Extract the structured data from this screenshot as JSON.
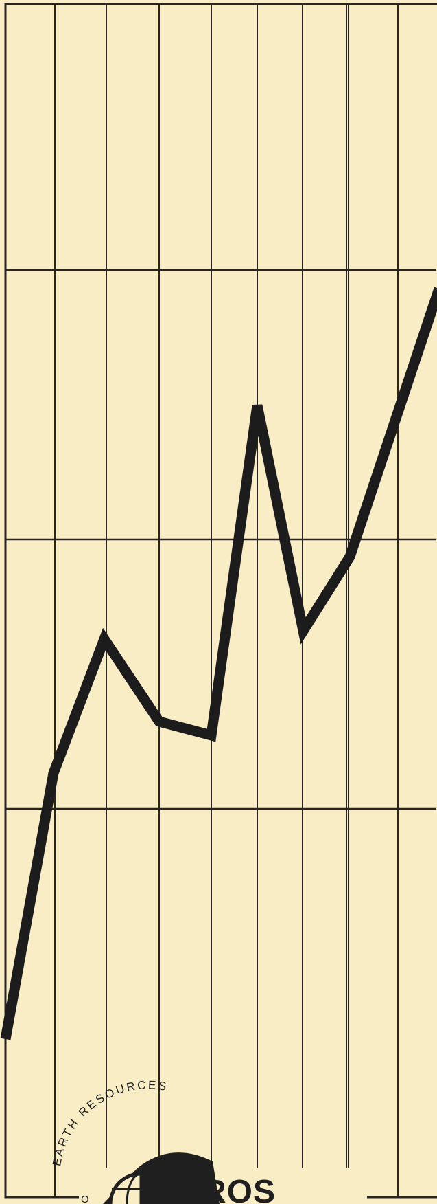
{
  "chart_data": {
    "type": "line",
    "title": "",
    "xlabel": "",
    "ylabel": "",
    "x": [
      1,
      2,
      3,
      4,
      5,
      6,
      7,
      8,
      9
    ],
    "y": [
      0.15,
      1.65,
      2.55,
      1.95,
      1.85,
      4.5,
      2.4,
      2.85,
      5.3
    ],
    "xlim": [
      1,
      9
    ],
    "ylim": [
      0,
      6
    ],
    "grid": true,
    "legend": "none",
    "colors": {
      "paper": "#f9edc6",
      "grid": "#2a2520",
      "series": "#1c1c1c"
    }
  },
  "logo": {
    "arc_text": "EARTH RESOURCES",
    "arc_prefix": "O",
    "name": "EROS"
  }
}
